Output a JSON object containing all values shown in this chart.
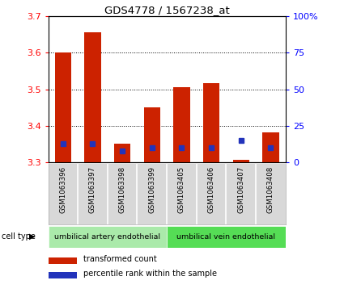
{
  "title": "GDS4778 / 1567238_at",
  "samples": [
    "GSM1063396",
    "GSM1063397",
    "GSM1063398",
    "GSM1063399",
    "GSM1063405",
    "GSM1063406",
    "GSM1063407",
    "GSM1063408"
  ],
  "red_values": [
    3.601,
    3.655,
    3.351,
    3.451,
    3.507,
    3.516,
    3.308,
    3.383
  ],
  "blue_pct": [
    13,
    13,
    8,
    10,
    10,
    10,
    15,
    10
  ],
  "y_min": 3.3,
  "y_max": 3.7,
  "y_ticks": [
    3.3,
    3.4,
    3.5,
    3.6,
    3.7
  ],
  "right_y_ticks": [
    0,
    25,
    50,
    75,
    100
  ],
  "right_y_labels": [
    "0",
    "25",
    "50",
    "75",
    "100%"
  ],
  "bar_color": "#cc2200",
  "blue_color": "#2233bb",
  "plot_bg": "#ffffff",
  "label_bg": "#d8d8d8",
  "cell_type_groups": [
    {
      "label": "umbilical artery endothelial",
      "start": 0,
      "end": 4,
      "color": "#aaeaaa"
    },
    {
      "label": "umbilical vein endothelial",
      "start": 4,
      "end": 8,
      "color": "#55dd55"
    }
  ],
  "legend_red_label": "transformed count",
  "legend_blue_label": "percentile rank within the sample",
  "cell_type_label": "cell type"
}
